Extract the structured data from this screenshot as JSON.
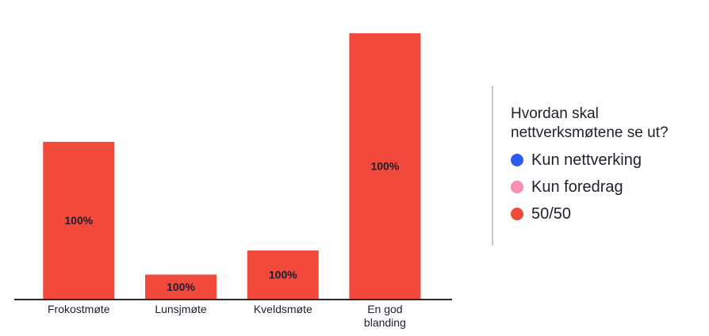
{
  "chart_data": {
    "type": "bar",
    "categories": [
      "Frokostmøte",
      "Lunsjmøte",
      "Kveldsmøte",
      "En god blanding"
    ],
    "series": [
      {
        "name": "Kun nettverking",
        "color": "#2f5bf5",
        "values": [
          0,
          0,
          0,
          0
        ]
      },
      {
        "name": "Kun foredrag",
        "color": "#f58fb3",
        "values": [
          0,
          0,
          0,
          0
        ]
      },
      {
        "name": "50/50",
        "color": "#f1493c",
        "values": [
          26,
          4,
          8,
          44
        ]
      }
    ],
    "data_labels": [
      "100%",
      "100%",
      "100%",
      "100%"
    ],
    "legend_title": "Hvordan skal nettverksmøtene se ut?",
    "legend_position": "right",
    "ylim": [
      0,
      44
    ],
    "grid": false,
    "title": "",
    "xlabel": "",
    "ylabel": ""
  }
}
